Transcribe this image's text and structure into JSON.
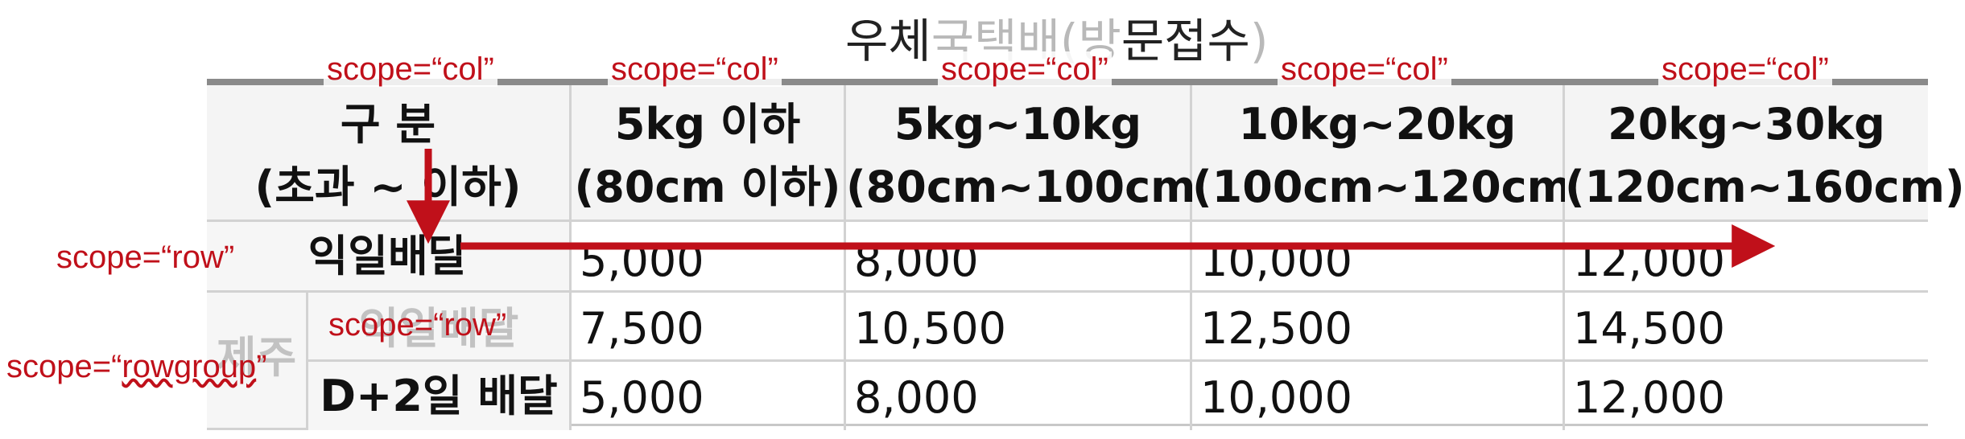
{
  "caption": {
    "prefix": "우체",
    "faded_middle": "국택배(방",
    "middle": "문접수",
    "faded_suffix": ")"
  },
  "table": {
    "headers": [
      {
        "line1": "구 분",
        "line2": "(초과 ~ 이하)"
      },
      {
        "line1": "5kg 이하",
        "line2": "(80cm 이하)"
      },
      {
        "line1": "5kg~10kg",
        "line2": "(80cm~100cm)"
      },
      {
        "line1": "10kg~20kg",
        "line2": "(100cm~120cm)"
      },
      {
        "line1": "20kg~30kg",
        "line2": "(120cm~160cm)"
      }
    ],
    "rows": [
      {
        "label": "익일배달",
        "values": [
          "5,000",
          "8,000",
          "10,000",
          "12,000"
        ]
      },
      {
        "label": "익일배달",
        "values": [
          "7,500",
          "10,500",
          "12,500",
          "14,500"
        ]
      },
      {
        "label": "D+2일 배달",
        "values": [
          "5,000",
          "8,000",
          "10,000",
          "12,000"
        ]
      }
    ],
    "rowgroup_label": "제주"
  },
  "annotations": {
    "col_label": "scope=“col”",
    "row_label": "scope=“row”",
    "rowgroup_prefix": "scope=“",
    "rowgroup_word": "rowgroup",
    "rowgroup_suffix": "”"
  },
  "colors": {
    "annotation": "#c0101a",
    "arrow": "#c0101a",
    "header_bg": "#f4f4f4",
    "grid": "#d2d2d2"
  }
}
